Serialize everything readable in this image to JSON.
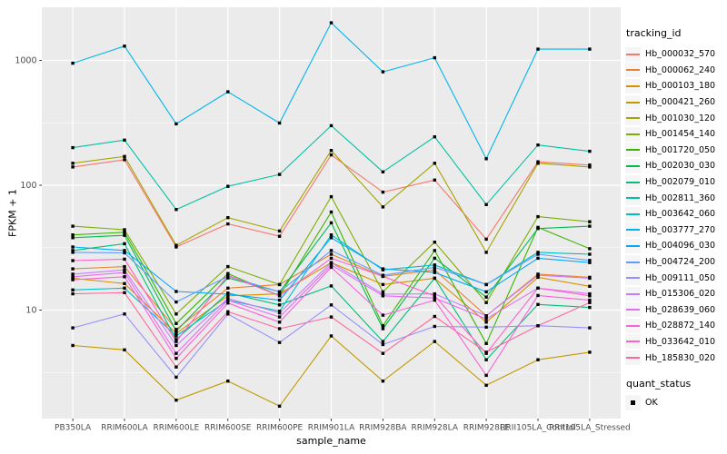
{
  "chart_data": {
    "type": "line",
    "title": "",
    "xlabel": "sample_name",
    "ylabel": "FPKM + 1",
    "y_scale": "log10",
    "y_ticks": [
      10,
      100,
      1000
    ],
    "y_tick_labels": [
      "10",
      "100",
      "1000"
    ],
    "y_minor_gridlines": [
      3.162,
      31.62,
      316.2
    ],
    "ylim": [
      1.3,
      2700
    ],
    "grid": "white major and minor on grey panel",
    "panel_bg": "#EBEBEB",
    "tick_label_color": "#4D4D4D",
    "point_shape": "filled black square",
    "legend_position": "right",
    "categories": [
      "PB350LA",
      "RRIM600LA",
      "RRIM600LE",
      "RRIM600SE",
      "RRIM600PE",
      "RRIM901LA",
      "RRIM928BA",
      "RRIM928LA",
      "RRIM928LE",
      "RRII105LA_Control",
      "RRII105LA_Stressed"
    ],
    "series": [
      {
        "name": "Hb_000032_570",
        "color": "#F8766D",
        "values": [
          140,
          160,
          32,
          49,
          39,
          175,
          88,
          110,
          37,
          154,
          145
        ]
      },
      {
        "name": "Hb_000062_240",
        "color": "#EA8331",
        "values": [
          21.4,
          22.3,
          7.0,
          15.0,
          16.0,
          28,
          18.6,
          21,
          9.0,
          19.4,
          18.3
        ]
      },
      {
        "name": "Hb_000103_180",
        "color": "#D89000",
        "values": [
          18.0,
          16.3,
          6.5,
          13.0,
          13.5,
          24,
          16.0,
          18,
          8.0,
          18.3,
          15.5
        ]
      },
      {
        "name": "Hb_000421_260",
        "color": "#C09B00",
        "values": [
          5.2,
          4.8,
          1.9,
          2.7,
          1.7,
          6.2,
          2.7,
          5.6,
          2.5,
          4.0,
          4.6
        ]
      },
      {
        "name": "Hb_001030_120",
        "color": "#A3A500",
        "values": [
          150,
          170,
          33,
          55,
          43,
          190,
          67,
          150,
          29,
          150,
          140
        ]
      },
      {
        "name": "Hb_001454_140",
        "color": "#7CAE00",
        "values": [
          47,
          44,
          9.3,
          22.3,
          16,
          81,
          14,
          35,
          11.5,
          56,
          51
        ]
      },
      {
        "name": "Hb_001720_050",
        "color": "#39B600",
        "values": [
          40,
          42,
          7.8,
          19.6,
          13,
          61,
          7.5,
          30,
          5.4,
          46,
          31
        ]
      },
      {
        "name": "Hb_002030_030",
        "color": "#00BB4E",
        "values": [
          38,
          39.7,
          6.8,
          18.1,
          14,
          50,
          7.1,
          26,
          12.7,
          45,
          47
        ]
      },
      {
        "name": "Hb_002079_010",
        "color": "#00BF7D",
        "values": [
          30,
          34,
          5.8,
          13.7,
          11,
          15.6,
          5.6,
          18,
          4.0,
          11.1,
          10.5
        ]
      },
      {
        "name": "Hb_002811_360",
        "color": "#00C1A3",
        "values": [
          200,
          230,
          64,
          98,
          122,
          300,
          128,
          244,
          70,
          210,
          187
        ]
      },
      {
        "name": "Hb_003642_060",
        "color": "#00BFC4",
        "values": [
          14.5,
          15,
          6.2,
          12.0,
          9.8,
          40,
          21,
          23,
          16,
          29,
          28
        ]
      },
      {
        "name": "Hb_003777_270",
        "color": "#00B5EC",
        "values": [
          950,
          1300,
          310,
          560,
          315,
          2000,
          810,
          1050,
          163,
          1230,
          1230
        ]
      },
      {
        "name": "Hb_004096_030",
        "color": "#00A9FF",
        "values": [
          32,
          30,
          14.1,
          13.4,
          12,
          38,
          21.4,
          20,
          14,
          26,
          24
        ]
      },
      {
        "name": "Hb_004724_200",
        "color": "#619CFF",
        "values": [
          29,
          28.7,
          11.6,
          18.6,
          14,
          30,
          19,
          22,
          16,
          28,
          25
        ]
      },
      {
        "name": "Hb_009111_050",
        "color": "#9590FF",
        "values": [
          7.2,
          9.3,
          2.9,
          9.3,
          5.5,
          11,
          5.3,
          7.4,
          7.3,
          7.5,
          7.2
        ]
      },
      {
        "name": "Hb_015306_020",
        "color": "#C77CFF",
        "values": [
          19.4,
          21,
          5.2,
          12.4,
          9.5,
          24,
          13.4,
          13.5,
          9.0,
          19.0,
          18.0
        ]
      },
      {
        "name": "Hb_028639_060",
        "color": "#E76BF3",
        "values": [
          18.5,
          20,
          4.5,
          12.0,
          8.8,
          23,
          13.0,
          12.5,
          8.5,
          15.0,
          13.5
        ]
      },
      {
        "name": "Hb_028872_140",
        "color": "#FA62DB",
        "values": [
          17.5,
          18.5,
          4.1,
          11.4,
          8.0,
          22,
          9.1,
          12.0,
          3.0,
          13.1,
          12.0
        ]
      },
      {
        "name": "Hb_033642_010",
        "color": "#FF61C9",
        "values": [
          24.9,
          25.6,
          5.6,
          19.0,
          13.0,
          26,
          18.6,
          13.0,
          4.5,
          15.0,
          13.0
        ]
      },
      {
        "name": "Hb_185830_020",
        "color": "#FF689E",
        "values": [
          13.5,
          13.8,
          3.5,
          9.7,
          7.1,
          8.8,
          4.5,
          8.9,
          4.6,
          7.5,
          11.5
        ]
      }
    ]
  },
  "legend": {
    "tracking_title": "tracking_id",
    "quant_title": "quant_status",
    "quant_value": "OK"
  }
}
